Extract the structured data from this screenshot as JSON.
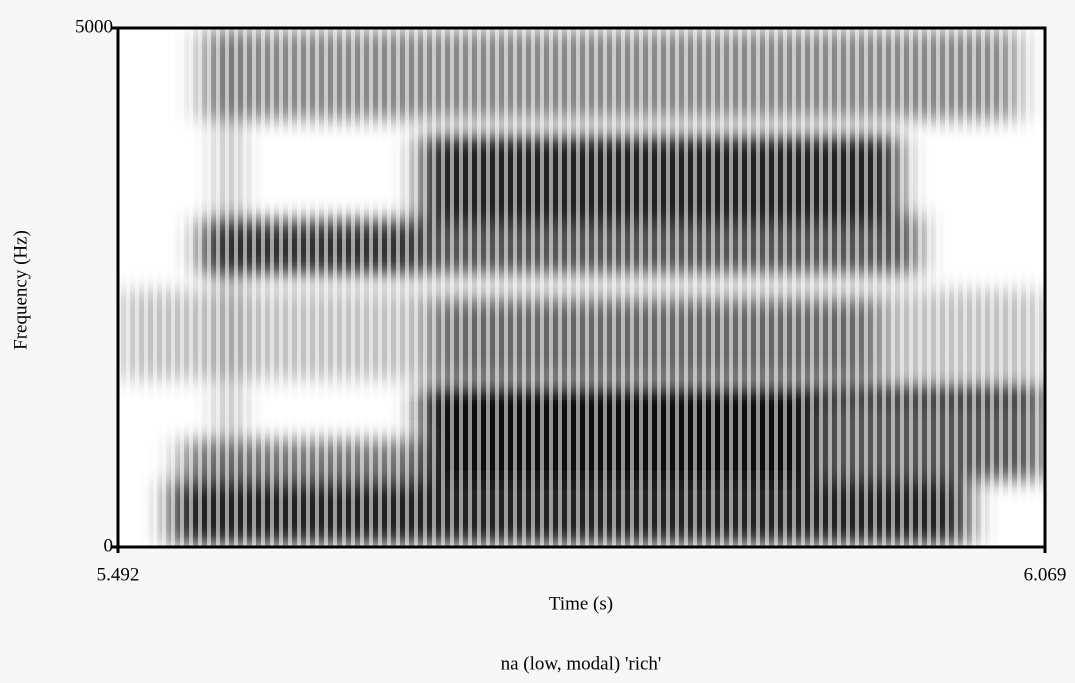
{
  "chart_data": {
    "type": "spectrogram",
    "title": "na (low, modal) 'rich'",
    "xlabel": "Time (s)",
    "ylabel": "Frequency (Hz)",
    "xlim": [
      5.492,
      6.069
    ],
    "xticks": [
      5.492,
      6.069
    ],
    "ylim": [
      0,
      5000
    ],
    "yticks": [
      0,
      5000
    ]
  }
}
